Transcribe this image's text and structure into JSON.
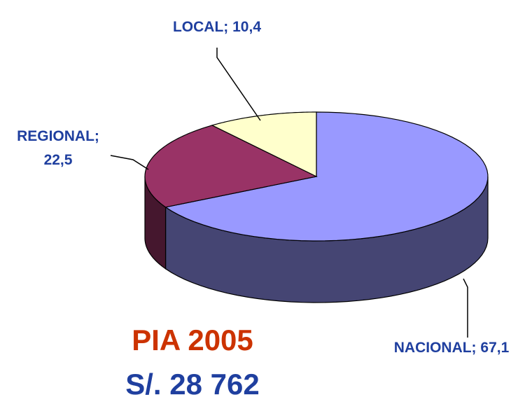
{
  "chart_data": {
    "type": "pie3d",
    "title": "PIA 2005",
    "subtitle": "S/. 28 762",
    "categories": [
      "NACIONAL",
      "REGIONAL",
      "LOCAL"
    ],
    "values": [
      67.1,
      22.5,
      10.4
    ],
    "value_labels": [
      "NACIONAL; 67,1",
      "REGIONAL; 22,5",
      "LOCAL; 10,4"
    ],
    "colors": [
      "#9999ff",
      "#993366",
      "#ffffcc"
    ]
  }
}
